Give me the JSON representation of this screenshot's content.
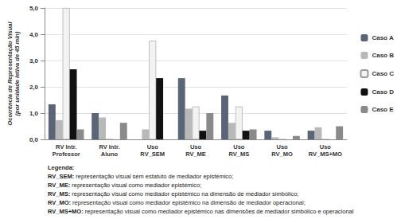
{
  "chart_data": {
    "type": "bar",
    "y_label": "Ocorrência de Representação Visual\n(por unidade letiva de 45 min)",
    "categories": [
      "RV Intr. Professor",
      "RV Intr. Aluno",
      "Uso RV_SEM",
      "Uso RV_ME",
      "Uso RV_MS",
      "Uso RV_MO",
      "Uso RV_MS+MO"
    ],
    "series": [
      {
        "name": "Caso A",
        "color": "#5b6578",
        "values": [
          1.33,
          1.0,
          0,
          2.33,
          1.67,
          0.33,
          0.33
        ]
      },
      {
        "name": "Caso B",
        "color": "#b9b9b9",
        "values": [
          0.73,
          0.83,
          0.38,
          1.17,
          0.63,
          0.08,
          0.46
        ]
      },
      {
        "name": "Caso C",
        "color": "#f3f3f3",
        "values": [
          5.0,
          0,
          3.75,
          1.25,
          1.25,
          0,
          0
        ]
      },
      {
        "name": "Caso D",
        "color": "#111111",
        "values": [
          2.67,
          0,
          2.33,
          0.33,
          0.33,
          0,
          0
        ]
      },
      {
        "name": "Caso E",
        "color": "#8a8a8a",
        "values": [
          0.38,
          0.63,
          0,
          1.0,
          0.38,
          0.13,
          0.5
        ]
      }
    ],
    "ylim": [
      0,
      5
    ],
    "yticks": [
      {
        "value": 0,
        "label": "0,0"
      },
      {
        "value": 1,
        "label": "1,0"
      },
      {
        "value": 2,
        "label": "2,0"
      },
      {
        "value": 3,
        "label": "3,0"
      },
      {
        "value": 4,
        "label": "4,0"
      },
      {
        "value": 5,
        "label": "5,0"
      }
    ],
    "grid": true,
    "legend": "right",
    "annotations": [
      "Legenda:",
      "RV_SEM: representação visual sem estatuto de mediador epistémico;",
      "RV_ME: representação visual como mediador epistémico;",
      "RV_MS: representação visual como mediador epistémico na dimensão de mediador simbólico;",
      "RV_MO: representação visual como mediador epistémico na dimensão de mediador operacional;",
      "RV_MS+MO: representação visual como mediador epistémico nas dimensões de mediador simbólico e operacional"
    ]
  }
}
